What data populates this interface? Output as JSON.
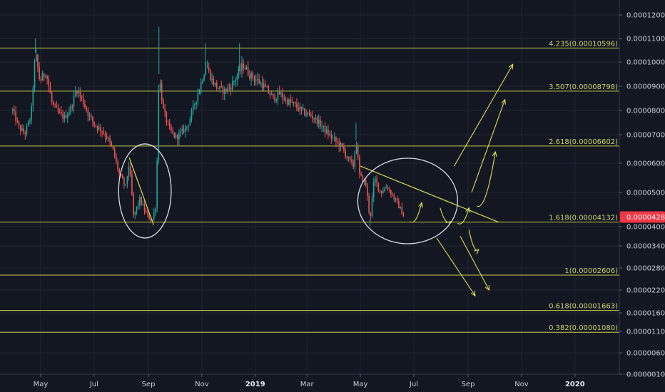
{
  "chart_data": {
    "type": "candlestick",
    "title": "",
    "xlabel": "",
    "ylabel": "",
    "ylim": [
      1e-07,
      0.00012828
    ],
    "grid": true,
    "colors": {
      "background": "#131722",
      "grid": "#1f2433",
      "up": "#26a69a",
      "down": "#ef5350",
      "fib": "#c8cc4a",
      "annotation": "#d9dd55",
      "ellipse": "#d8dbe4",
      "price_tag": "#f23645"
    },
    "y_ticks": [
      {
        "value": 0.00012,
        "label": "0.00012000"
      },
      {
        "value": 0.00011,
        "label": "0.00011000"
      },
      {
        "value": 0.0001,
        "label": "0.00010000"
      },
      {
        "value": 9e-05,
        "label": "0.00009000"
      },
      {
        "value": 8e-05,
        "label": "0.00008000"
      },
      {
        "value": 7e-05,
        "label": "0.00007000"
      },
      {
        "value": 6e-05,
        "label": "0.00006000"
      },
      {
        "value": 5e-05,
        "label": "0.00005000"
      },
      {
        "value": 4e-05,
        "label": "0.00004000"
      },
      {
        "value": 3.4e-05,
        "label": "0.00003400"
      },
      {
        "value": 2.8e-05,
        "label": "0.00002800"
      },
      {
        "value": 2.2e-05,
        "label": "0.00002200"
      },
      {
        "value": 1.6e-05,
        "label": "0.00001600"
      },
      {
        "value": 1.1e-05,
        "label": "0.00001100"
      },
      {
        "value": 6e-06,
        "label": "0.00000600"
      },
      {
        "value": 1e-06,
        "label": "0.00000100"
      }
    ],
    "x_ticks": [
      {
        "date": "2018-05-01",
        "label": "May",
        "bold": false
      },
      {
        "date": "2018-07-01",
        "label": "Jul",
        "bold": false
      },
      {
        "date": "2018-09-01",
        "label": "Sep",
        "bold": false
      },
      {
        "date": "2018-11-01",
        "label": "Nov",
        "bold": false
      },
      {
        "date": "2019-01-01",
        "label": "2019",
        "bold": true
      },
      {
        "date": "2019-03-01",
        "label": "Mar",
        "bold": false
      },
      {
        "date": "2019-05-01",
        "label": "May",
        "bold": false
      },
      {
        "date": "2019-07-01",
        "label": "Jul",
        "bold": false
      },
      {
        "date": "2019-09-01",
        "label": "Sep",
        "bold": false
      },
      {
        "date": "2019-11-01",
        "label": "Nov",
        "bold": false
      },
      {
        "date": "2020-01-01",
        "label": "2020",
        "bold": true
      }
    ],
    "xlim": [
      "2018-03-30",
      "2020-02-12"
    ],
    "fib_levels": [
      {
        "ratio": "4.235",
        "value": 0.00010596,
        "label": "4.235(0.00010596)"
      },
      {
        "ratio": "3.507",
        "value": 8.798e-05,
        "label": "3.507(0.00008798)"
      },
      {
        "ratio": "2.618",
        "value": 6.602e-05,
        "label": "2.618(0.00006602)"
      },
      {
        "ratio": "1.618",
        "value": 4.132e-05,
        "label": "1.618(0.00004132)"
      },
      {
        "ratio": "1",
        "value": 2.606e-05,
        "label": "1(0.00002606)"
      },
      {
        "ratio": "0.618",
        "value": 1.663e-05,
        "label": "0.618(0.00001663)"
      },
      {
        "ratio": "0.382",
        "value": 1.08e-05,
        "label": "0.382(0.00001080)"
      }
    ],
    "current_price": {
      "value": 4.28e-05,
      "label": "0.00004280"
    },
    "price_path": [
      [
        "2018-03-30",
        8e-05
      ],
      [
        "2018-04-06",
        7.3e-05
      ],
      [
        "2018-04-13",
        7.05e-05
      ],
      [
        "2018-04-20",
        7.8e-05
      ],
      [
        "2018-04-25",
        0.000104
      ],
      [
        "2018-04-30",
        9.2e-05
      ],
      [
        "2018-05-07",
        9.6e-05
      ],
      [
        "2018-05-14",
        8.3e-05
      ],
      [
        "2018-05-21",
        7.9e-05
      ],
      [
        "2018-05-28",
        7.7e-05
      ],
      [
        "2018-06-04",
        8.05e-05
      ],
      [
        "2018-06-11",
        8.9e-05
      ],
      [
        "2018-06-18",
        8.4e-05
      ],
      [
        "2018-06-25",
        7.8e-05
      ],
      [
        "2018-07-02",
        7.4e-05
      ],
      [
        "2018-07-09",
        7.2e-05
      ],
      [
        "2018-07-16",
        6.9e-05
      ],
      [
        "2018-07-23",
        6.4e-05
      ],
      [
        "2018-07-30",
        5.6e-05
      ],
      [
        "2018-08-06",
        5.2e-05
      ],
      [
        "2018-08-10",
        6e-05
      ],
      [
        "2018-08-15",
        4.3e-05
      ],
      [
        "2018-08-22",
        4.8e-05
      ],
      [
        "2018-08-29",
        4.4e-05
      ],
      [
        "2018-09-05",
        4.15e-05
      ],
      [
        "2018-09-10",
        4.7e-05
      ],
      [
        "2018-09-13",
        9.5e-05
      ],
      [
        "2018-09-18",
        8e-05
      ],
      [
        "2018-09-25",
        7.2e-05
      ],
      [
        "2018-10-02",
        6.9e-05
      ],
      [
        "2018-10-09",
        7.1e-05
      ],
      [
        "2018-10-16",
        7.4e-05
      ],
      [
        "2018-10-23",
        8.2e-05
      ],
      [
        "2018-10-30",
        9e-05
      ],
      [
        "2018-11-06",
        9.9e-05
      ],
      [
        "2018-11-13",
        9.2e-05
      ],
      [
        "2018-11-20",
        8.9e-05
      ],
      [
        "2018-11-27",
        8.8e-05
      ],
      [
        "2018-12-04",
        9e-05
      ],
      [
        "2018-12-11",
        9.4e-05
      ],
      [
        "2018-12-18",
        9.9e-05
      ],
      [
        "2018-12-25",
        9.5e-05
      ],
      [
        "2019-01-01",
        9.3e-05
      ],
      [
        "2019-01-08",
        9.1e-05
      ],
      [
        "2019-01-15",
        8.8e-05
      ],
      [
        "2019-01-22",
        8.5e-05
      ],
      [
        "2019-01-29",
        8.7e-05
      ],
      [
        "2019-02-05",
        8.4e-05
      ],
      [
        "2019-02-12",
        8.3e-05
      ],
      [
        "2019-02-19",
        8.1e-05
      ],
      [
        "2019-02-26",
        7.9e-05
      ],
      [
        "2019-03-05",
        7.8e-05
      ],
      [
        "2019-03-12",
        7.6e-05
      ],
      [
        "2019-03-19",
        7.3e-05
      ],
      [
        "2019-03-26",
        7e-05
      ],
      [
        "2019-04-02",
        6.8e-05
      ],
      [
        "2019-04-09",
        6.6e-05
      ],
      [
        "2019-04-16",
        6.2e-05
      ],
      [
        "2019-04-23",
        5.9e-05
      ],
      [
        "2019-04-26",
        6.8e-05
      ],
      [
        "2019-04-30",
        5.6e-05
      ],
      [
        "2019-05-07",
        5.3e-05
      ],
      [
        "2019-05-12",
        4.2e-05
      ],
      [
        "2019-05-17",
        5.5e-05
      ],
      [
        "2019-05-24",
        5e-05
      ],
      [
        "2019-05-31",
        5.2e-05
      ],
      [
        "2019-06-07",
        4.9e-05
      ],
      [
        "2019-06-14",
        4.6e-05
      ],
      [
        "2019-06-20",
        4.28e-05
      ]
    ],
    "annotations": {
      "triangle_2018_top": [
        "2018-08-10",
        6.2e-05
      ],
      "triangle_2018_bottom": [
        "2018-09-07",
        4.05e-05
      ],
      "trendline_2019_start": [
        "2019-05-01",
        5.9e-05
      ],
      "trendline_2019_end": [
        "2019-10-06",
        4.13e-05
      ],
      "ellipse_2018": {
        "center": [
          "2018-08-28",
          5.05e-05
        ],
        "half_width_days": 30
      },
      "ellipse_2019": {
        "center": [
          "2019-06-24",
          4.75e-05
        ],
        "half_width_days": 57
      },
      "arrows": [
        {
          "from": [
            "2019-06-27",
            4.15e-05
          ],
          "to": [
            "2019-07-10",
            4.7e-05
          ]
        },
        {
          "from": [
            "2019-07-31",
            4.55e-05
          ],
          "to": [
            "2019-08-12",
            4.15e-05
          ]
        },
        {
          "from": [
            "2019-08-20",
            4.1e-05
          ],
          "to": [
            "2019-09-02",
            4.55e-05
          ]
        },
        {
          "from": [
            "2019-08-16",
            5.9e-05
          ],
          "to": [
            "2019-10-22",
            9.9e-05
          ]
        },
        {
          "from": [
            "2019-09-05",
            5e-05
          ],
          "to": [
            "2019-10-13",
            8.45e-05
          ]
        },
        {
          "from": [
            "2019-09-11",
            4.6e-05
          ],
          "to": [
            "2019-10-02",
            6.4e-05
          ]
        },
        {
          "from": [
            "2019-07-27",
            3.65e-05
          ],
          "to": [
            "2019-09-09",
            2.05e-05
          ]
        },
        {
          "from": [
            "2019-08-23",
            3.7e-05
          ],
          "to": [
            "2019-09-25",
            2.2e-05
          ]
        },
        {
          "from": [
            "2019-09-02",
            3.9e-05
          ],
          "to": [
            "2019-09-13",
            3.3e-05
          ]
        }
      ]
    }
  }
}
